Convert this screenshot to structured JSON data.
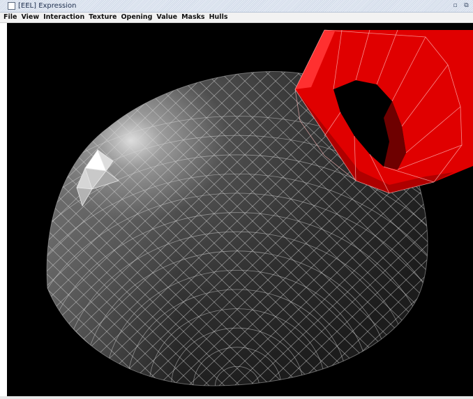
{
  "window": {
    "title": "[EEL] Expression",
    "icon": "window-icon",
    "controls": [
      {
        "name": "restore-icon",
        "glyph": "▫"
      },
      {
        "name": "maximize-icon",
        "glyph": "⧉"
      }
    ]
  },
  "menubar": {
    "items": [
      "File",
      "View",
      "Interaction",
      "Texture",
      "Opening",
      "Value",
      "Masks",
      "Hulls"
    ]
  },
  "scene": {
    "background": "#000000",
    "mesh_color": "#5a5a5a",
    "edge_color": "#d9d9d9",
    "highlight_color": "#ffffff",
    "ring_color": "#cc0000",
    "ring_dark": "#7a0000"
  }
}
